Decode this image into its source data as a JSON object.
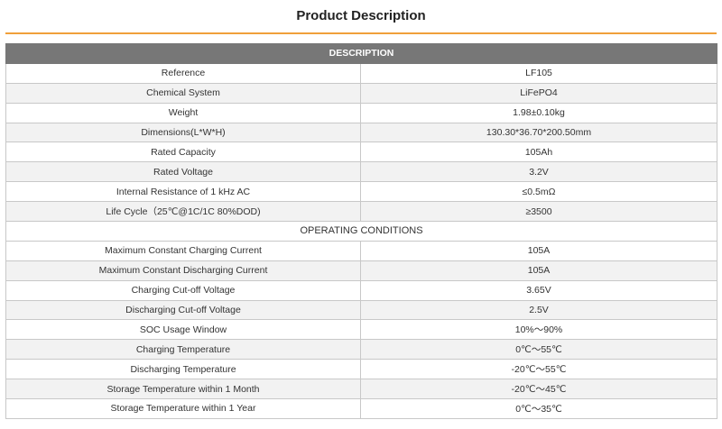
{
  "page": {
    "title": "Product Description"
  },
  "table": {
    "header": "DESCRIPTION",
    "description_rows": [
      {
        "label": "Reference",
        "value": "LF105"
      },
      {
        "label": "Chemical System",
        "value": "LiFePO4"
      },
      {
        "label": "Weight",
        "value": "1.98±0.10kg"
      },
      {
        "label": "Dimensions(L*W*H)",
        "value": "130.30*36.70*200.50mm"
      },
      {
        "label": "Rated Capacity",
        "value": "105Ah"
      },
      {
        "label": "Rated Voltage",
        "value": "3.2V"
      },
      {
        "label": "Internal Resistance of 1 kHz AC",
        "value": "≤0.5mΩ"
      },
      {
        "label": "Life Cycle（25℃@1C/1C 80%DOD)",
        "value": "≥3500"
      }
    ],
    "section_title": "OPERATING CONDITIONS",
    "operating_rows": [
      {
        "label": "Maximum Constant Charging Current",
        "value": "105A"
      },
      {
        "label": "Maximum Constant Discharging Current",
        "value": "105A"
      },
      {
        "label": "Charging Cut-off Voltage",
        "value": "3.65V"
      },
      {
        "label": "Discharging Cut-off Voltage",
        "value": "2.5V"
      },
      {
        "label": "SOC Usage Window",
        "value": "10%～90%"
      },
      {
        "label": "Charging Temperature",
        "value": "0℃～55℃"
      },
      {
        "label": "Discharging Temperature",
        "value": "-20℃～55℃"
      },
      {
        "label": "Storage Temperature within 1 Month",
        "value": "-20℃～45℃"
      },
      {
        "label": "Storage Temperature within 1 Year",
        "value": "0℃～35℃"
      }
    ]
  },
  "colors": {
    "accent_rule": "#f0a03a",
    "header_bg": "#777777",
    "zebra_row": "#f2f2f2"
  }
}
